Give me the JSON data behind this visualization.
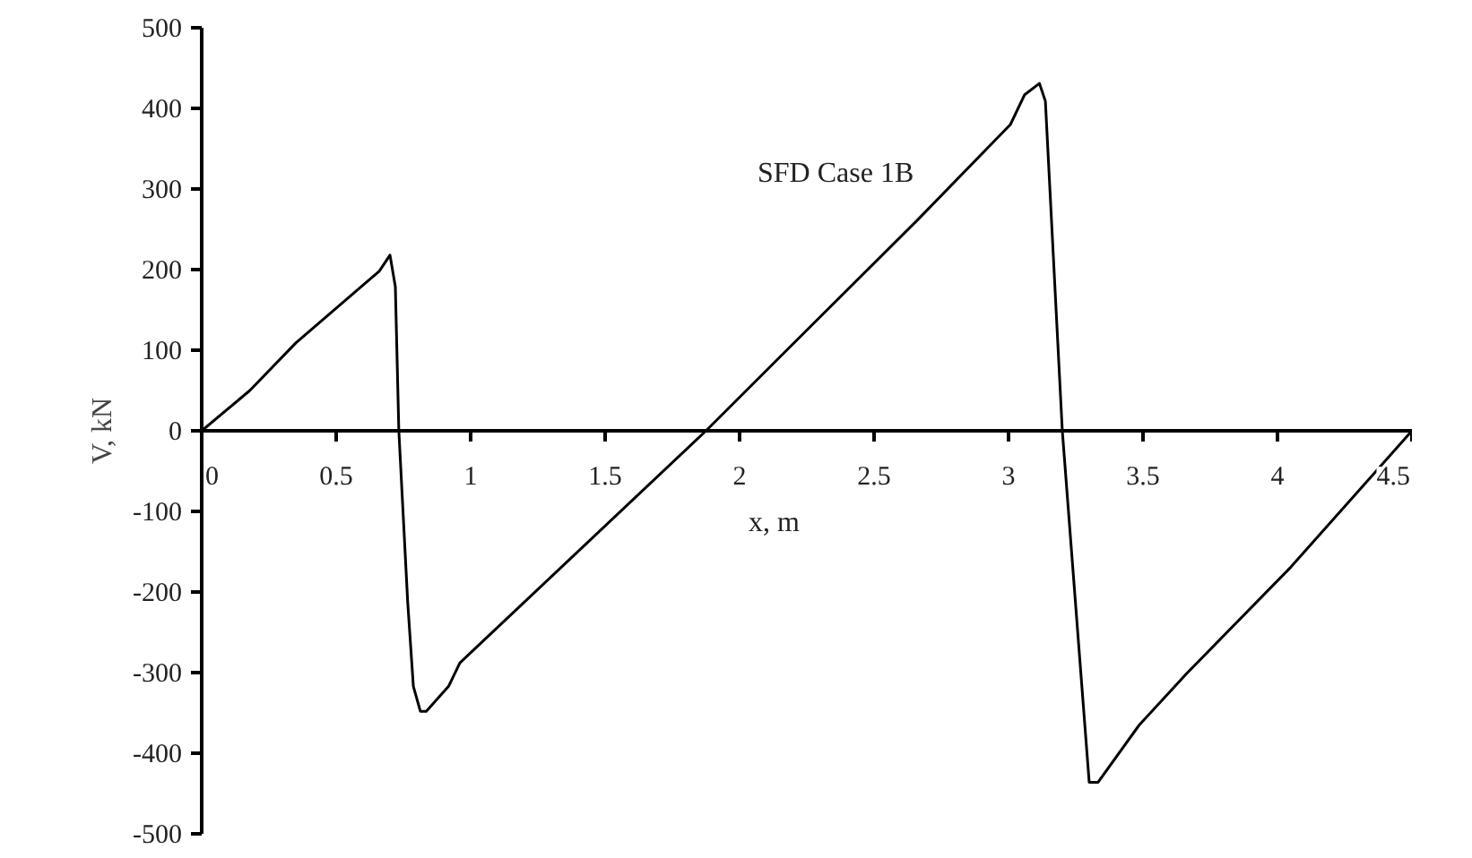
{
  "chart_data": {
    "type": "line",
    "title": "SFD Case 1B",
    "xlabel": "x, m",
    "ylabel": "V, kN",
    "x": [
      0,
      0.179,
      0.35,
      0.59,
      0.66,
      0.7,
      0.72,
      0.733,
      0.766,
      0.787,
      0.813,
      0.835,
      0.918,
      0.96,
      1.875,
      2.136,
      2.66,
      3.007,
      3.06,
      3.115,
      3.137,
      3.2,
      3.3,
      3.333,
      3.486,
      3.66,
      4.05,
      4.5
    ],
    "series": [
      {
        "color": "#000000",
        "values": [
          0,
          50,
          109,
          178,
          198,
          218,
          179,
          0,
          -213,
          -317,
          -348,
          -348,
          -317,
          -288,
          0,
          87,
          261,
          380,
          417,
          431,
          409,
          0,
          -436,
          -436,
          -365,
          -302,
          -169,
          0
        ]
      }
    ],
    "xlim": [
      0,
      4.5
    ],
    "ylim": [
      -500,
      500
    ],
    "xticks": [
      0,
      0.5,
      1,
      1.5,
      2,
      2.5,
      3,
      3.5,
      4,
      4.5
    ],
    "yticks": [
      -500,
      -400,
      -300,
      -200,
      -100,
      0,
      100,
      200,
      300,
      400,
      500
    ],
    "marker": "none",
    "line_style": "solid",
    "grid": false
  }
}
